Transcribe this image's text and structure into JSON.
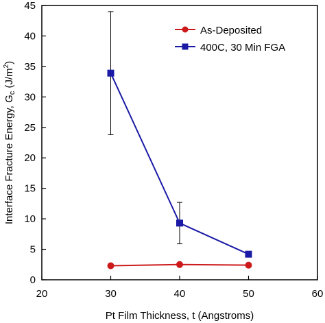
{
  "chart_data": {
    "type": "line",
    "xlabel": "Pt Film Thickness, t (Angstroms)",
    "ylabel": "Interface Fracture Energy, G",
    "ylabel_sub": "c",
    "ylabel_unit_pre": " (J/m",
    "ylabel_unit_sup": "2",
    "ylabel_unit_post": ")",
    "xlim": [
      20,
      60
    ],
    "ylim": [
      0,
      45
    ],
    "xticks": [
      20,
      30,
      40,
      50,
      60
    ],
    "yticks": [
      0,
      5,
      10,
      15,
      20,
      25,
      30,
      35,
      40,
      45
    ],
    "grid": false,
    "legend_position": "top-right",
    "series": [
      {
        "name": "As-Deposited",
        "color": "#cc1a1a",
        "marker": "circle",
        "x": [
          30,
          40,
          50
        ],
        "y": [
          2.3,
          2.5,
          2.4
        ],
        "err": [
          0,
          0,
          0
        ]
      },
      {
        "name": "400C, 30 Min FGA",
        "color": "#1a1aa6",
        "marker": "square",
        "x": [
          30,
          40,
          50
        ],
        "y": [
          33.9,
          9.3,
          4.2
        ],
        "err": [
          10.1,
          3.4,
          0
        ]
      }
    ]
  }
}
